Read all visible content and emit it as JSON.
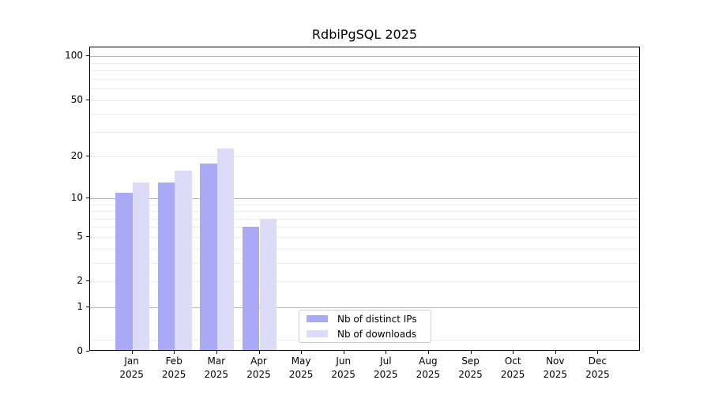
{
  "chart_data": {
    "type": "bar",
    "title": "RdbiPgSQL 2025",
    "x_tick_months": [
      "Jan",
      "Feb",
      "Mar",
      "Apr",
      "May",
      "Jun",
      "Jul",
      "Aug",
      "Sep",
      "Oct",
      "Nov",
      "Dec"
    ],
    "x_tick_year": "2025",
    "series": [
      {
        "name": "Nb of distinct IPs",
        "color": "#a9a9f5",
        "values": [
          11,
          13,
          18,
          6,
          0,
          0,
          0,
          0,
          0,
          0,
          0,
          0
        ]
      },
      {
        "name": "Nb of downloads",
        "color": "#dcdcf8",
        "values": [
          13,
          16,
          23,
          7,
          0,
          0,
          0,
          0,
          0,
          0,
          0,
          0
        ]
      }
    ],
    "yscale": "log1p",
    "ylim": [
      0,
      115
    ],
    "y_major_ticks": [
      0,
      1,
      2,
      5,
      10,
      20,
      50,
      100
    ],
    "grid_major_values": [
      1,
      10,
      100
    ],
    "grid_minor_values": [
      0.2,
      2,
      3,
      4,
      5,
      6,
      7,
      8,
      9,
      20,
      30,
      40,
      50,
      60,
      70,
      80,
      90
    ],
    "grid": "both",
    "legend_position": "bottom-center",
    "colors": {
      "grid_major": "#b6b6b6",
      "grid_minor": "#ececec",
      "axis": "#000000",
      "background": "#ffffff"
    }
  }
}
